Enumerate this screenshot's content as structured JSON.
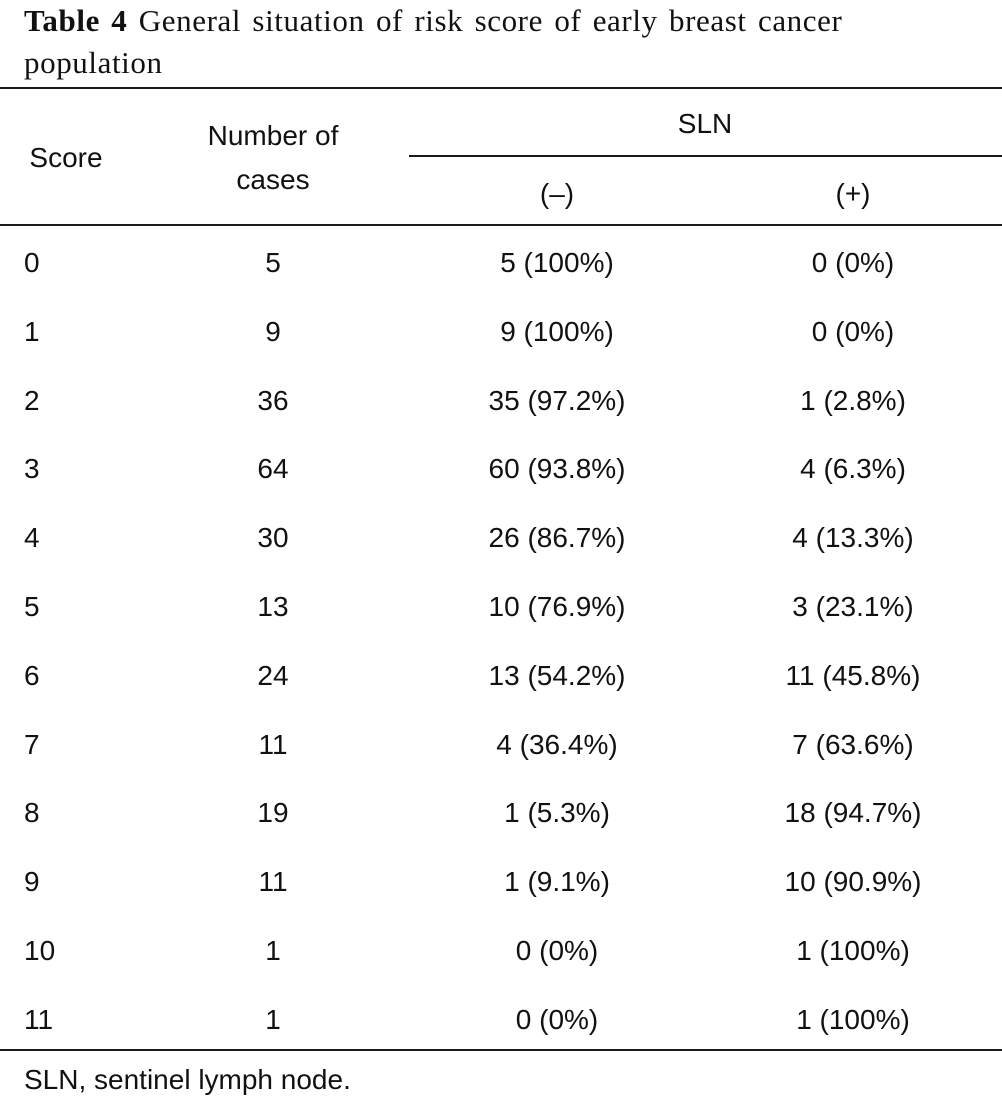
{
  "caption": {
    "label": "Table 4",
    "text": "General situation of risk score of early breast cancer population"
  },
  "table": {
    "headers": {
      "score": "Score",
      "number_line1": "Number of",
      "number_line2": "cases",
      "group": "SLN",
      "negative": "(–)",
      "positive": "(+)"
    },
    "rows": [
      [
        "0",
        "5",
        "5 (100%)",
        "0 (0%)"
      ],
      [
        "1",
        "9",
        "9 (100%)",
        "0 (0%)"
      ],
      [
        "2",
        "36",
        "35 (97.2%)",
        "1 (2.8%)"
      ],
      [
        "3",
        "64",
        "60 (93.8%)",
        "4 (6.3%)"
      ],
      [
        "4",
        "30",
        "26 (86.7%)",
        "4 (13.3%)"
      ],
      [
        "5",
        "13",
        "10 (76.9%)",
        "3 (23.1%)"
      ],
      [
        "6",
        "24",
        "13 (54.2%)",
        "11 (45.8%)"
      ],
      [
        "7",
        "11",
        "4 (36.4%)",
        "7 (63.6%)"
      ],
      [
        "8",
        "19",
        "1 (5.3%)",
        "18 (94.7%)"
      ],
      [
        "9",
        "11",
        "1 (9.1%)",
        "10 (90.9%)"
      ],
      [
        "10",
        "1",
        "0 (0%)",
        "1 (100%)"
      ],
      [
        "11",
        "1",
        "0 (0%)",
        "1 (100%)"
      ]
    ]
  },
  "footnote": "SLN, sentinel lymph node."
}
